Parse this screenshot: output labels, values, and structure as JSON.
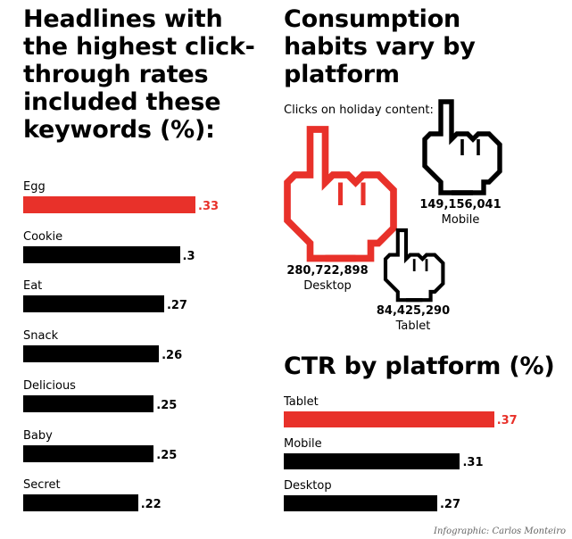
{
  "colors": {
    "highlight": "#e8312a",
    "bar": "#000000",
    "text": "#000000",
    "credit": "#666666"
  },
  "left_title": "Headlines with\nthe highest click-\nthrough rates\nincluded these\nkeywords (%):",
  "right_title": "Consumption\nhabits vary by\nplatform",
  "clicks_subtitle": "Clicks on holiday content:",
  "ctr_title": "CTR by platform (%)",
  "credit": "Infographic: Carlos Monteiro",
  "platform_clicks": [
    {
      "platform": "Desktop",
      "clicks": "280,722,898",
      "icon": "pointing-hand-icon",
      "color": "#e8312a"
    },
    {
      "platform": "Mobile",
      "clicks": "149,156,041",
      "icon": "pointing-hand-icon",
      "color": "#000000"
    },
    {
      "platform": "Tablet",
      "clicks": "84,425,290",
      "icon": "pointing-hand-icon",
      "color": "#000000"
    }
  ],
  "chart_data": [
    {
      "type": "bar",
      "orientation": "horizontal",
      "categories": [
        "Egg",
        "Cookie",
        "Eat",
        "Snack",
        "Delicious",
        "Baby",
        "Secret"
      ],
      "values": [
        0.33,
        0.3,
        0.27,
        0.26,
        0.25,
        0.25,
        0.22
      ],
      "value_labels": [
        ".33",
        ".3",
        ".27",
        ".26",
        ".25",
        ".25",
        ".22"
      ],
      "highlight_index": 0,
      "title": "Headlines with the highest click-through rates included these keywords (%):"
    },
    {
      "type": "bar",
      "orientation": "horizontal",
      "categories": [
        "Tablet",
        "Mobile",
        "Desktop"
      ],
      "values": [
        0.37,
        0.31,
        0.27
      ],
      "value_labels": [
        ".37",
        ".31",
        ".27"
      ],
      "highlight_index": 0,
      "title": "CTR by platform (%)"
    }
  ]
}
